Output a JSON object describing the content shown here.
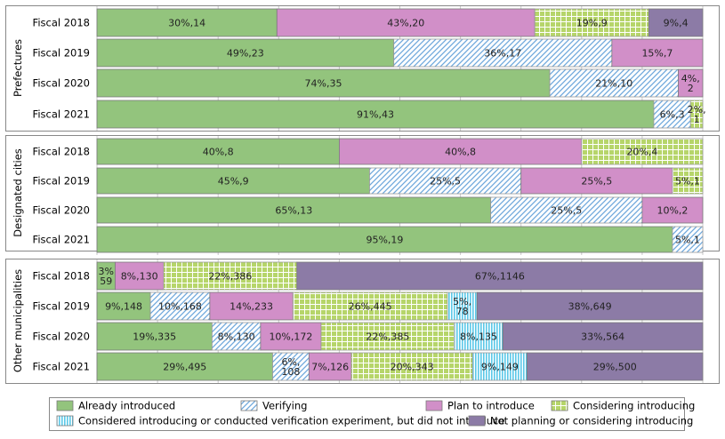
{
  "chart_data": {
    "type": "bar",
    "orientation": "horizontal",
    "stacked": "100%",
    "value_label_format": "percent,count",
    "grid": true,
    "legend_position": "bottom",
    "categories": [
      "Fiscal 2018",
      "Fiscal 2019",
      "Fiscal 2020",
      "Fiscal 2021"
    ],
    "series": [
      {
        "name": "Already introduced",
        "color": "#93C47D",
        "pattern": "solid"
      },
      {
        "name": "Verifying",
        "color": "#6FA8DC",
        "pattern": "diagonal-hatch"
      },
      {
        "name": "Plan to introduce",
        "color": "#D18FC8",
        "pattern": "solid"
      },
      {
        "name": "Considering introducing",
        "color": "#B6D56A",
        "pattern": "grid-dots"
      },
      {
        "name": "Considered introducing or conducted verification experiment, but did not introduce",
        "color": "#5BC8E8",
        "pattern": "vertical-lines"
      },
      {
        "name": "Not planning or considering introducing",
        "color": "#8C7BA6",
        "pattern": "solid"
      }
    ],
    "groups": [
      {
        "name": "Prefectures",
        "rows": [
          {
            "category": "Fiscal 2018",
            "segments": [
              {
                "series": 0,
                "pct": 30,
                "count": 14,
                "label": "30%,14"
              },
              {
                "series": 2,
                "pct": 43,
                "count": 20,
                "label": "43%,20"
              },
              {
                "series": 3,
                "pct": 19,
                "count": 9,
                "label": "19%,9"
              },
              {
                "series": 5,
                "pct": 9,
                "count": 4,
                "label": "9%,4"
              }
            ]
          },
          {
            "category": "Fiscal 2019",
            "segments": [
              {
                "series": 0,
                "pct": 49,
                "count": 23,
                "label": "49%,23"
              },
              {
                "series": 1,
                "pct": 36,
                "count": 17,
                "label": "36%,17"
              },
              {
                "series": 2,
                "pct": 15,
                "count": 7,
                "label": "15%,7"
              }
            ]
          },
          {
            "category": "Fiscal 2020",
            "segments": [
              {
                "series": 0,
                "pct": 74,
                "count": 35,
                "label": "74%,35"
              },
              {
                "series": 1,
                "pct": 21,
                "count": 10,
                "label": "21%,10"
              },
              {
                "series": 2,
                "pct": 4,
                "count": 2,
                "label": "4%,\n2"
              }
            ]
          },
          {
            "category": "Fiscal 2021",
            "segments": [
              {
                "series": 0,
                "pct": 91,
                "count": 43,
                "label": "91%,43"
              },
              {
                "series": 1,
                "pct": 6,
                "count": 3,
                "label": "6%,3"
              },
              {
                "series": 3,
                "pct": 2,
                "count": 1,
                "label": "2%,\n1"
              }
            ]
          }
        ]
      },
      {
        "name": "Designated cities",
        "rows": [
          {
            "category": "Fiscal 2018",
            "segments": [
              {
                "series": 0,
                "pct": 40,
                "count": 8,
                "label": "40%,8"
              },
              {
                "series": 2,
                "pct": 40,
                "count": 8,
                "label": "40%,8"
              },
              {
                "series": 3,
                "pct": 20,
                "count": 4,
                "label": "20%,4"
              }
            ]
          },
          {
            "category": "Fiscal 2019",
            "segments": [
              {
                "series": 0,
                "pct": 45,
                "count": 9,
                "label": "45%,9"
              },
              {
                "series": 1,
                "pct": 25,
                "count": 5,
                "label": "25%,5"
              },
              {
                "series": 2,
                "pct": 25,
                "count": 5,
                "label": "25%,5"
              },
              {
                "series": 3,
                "pct": 5,
                "count": 1,
                "label": "5%,1"
              }
            ]
          },
          {
            "category": "Fiscal 2020",
            "segments": [
              {
                "series": 0,
                "pct": 65,
                "count": 13,
                "label": "65%,13"
              },
              {
                "series": 1,
                "pct": 25,
                "count": 5,
                "label": "25%,5"
              },
              {
                "series": 2,
                "pct": 10,
                "count": 2,
                "label": "10%,2"
              }
            ]
          },
          {
            "category": "Fiscal 2021",
            "segments": [
              {
                "series": 0,
                "pct": 95,
                "count": 19,
                "label": "95%,19"
              },
              {
                "series": 1,
                "pct": 5,
                "count": 1,
                "label": "5%,1"
              }
            ]
          }
        ]
      },
      {
        "name": "Other municipalities",
        "rows": [
          {
            "category": "Fiscal 2018",
            "segments": [
              {
                "series": 0,
                "pct": 3,
                "count": 59,
                "label": "3%\n59"
              },
              {
                "series": 2,
                "pct": 8,
                "count": 130,
                "label": "8%,130"
              },
              {
                "series": 3,
                "pct": 22,
                "count": 386,
                "label": "22%,386"
              },
              {
                "series": 5,
                "pct": 67,
                "count": 1146,
                "label": "67%,1146"
              }
            ]
          },
          {
            "category": "Fiscal 2019",
            "segments": [
              {
                "series": 0,
                "pct": 9,
                "count": 148,
                "label": "9%,148"
              },
              {
                "series": 1,
                "pct": 10,
                "count": 168,
                "label": "10%,168"
              },
              {
                "series": 2,
                "pct": 14,
                "count": 233,
                "label": "14%,233"
              },
              {
                "series": 3,
                "pct": 26,
                "count": 445,
                "label": "26%,445"
              },
              {
                "series": 4,
                "pct": 5,
                "count": 78,
                "label": "5%,\n78"
              },
              {
                "series": 5,
                "pct": 38,
                "count": 649,
                "label": "38%,649"
              }
            ]
          },
          {
            "category": "Fiscal 2020",
            "segments": [
              {
                "series": 0,
                "pct": 19,
                "count": 335,
                "label": "19%,335"
              },
              {
                "series": 1,
                "pct": 8,
                "count": 130,
                "label": "8%,130"
              },
              {
                "series": 2,
                "pct": 10,
                "count": 172,
                "label": "10%,172"
              },
              {
                "series": 3,
                "pct": 22,
                "count": 385,
                "label": "22%,385"
              },
              {
                "series": 4,
                "pct": 8,
                "count": 135,
                "label": "8%,135"
              },
              {
                "series": 5,
                "pct": 33,
                "count": 564,
                "label": "33%,564"
              }
            ]
          },
          {
            "category": "Fiscal 2021",
            "segments": [
              {
                "series": 0,
                "pct": 29,
                "count": 495,
                "label": "29%,495"
              },
              {
                "series": 1,
                "pct": 6,
                "count": 108,
                "label": "6%,\n108"
              },
              {
                "series": 2,
                "pct": 7,
                "count": 126,
                "label": "7%,126"
              },
              {
                "series": 3,
                "pct": 20,
                "count": 343,
                "label": "20%,343"
              },
              {
                "series": 4,
                "pct": 9,
                "count": 149,
                "label": "9%,149"
              },
              {
                "series": 5,
                "pct": 29,
                "count": 500,
                "label": "29%,500"
              }
            ]
          }
        ]
      }
    ]
  }
}
